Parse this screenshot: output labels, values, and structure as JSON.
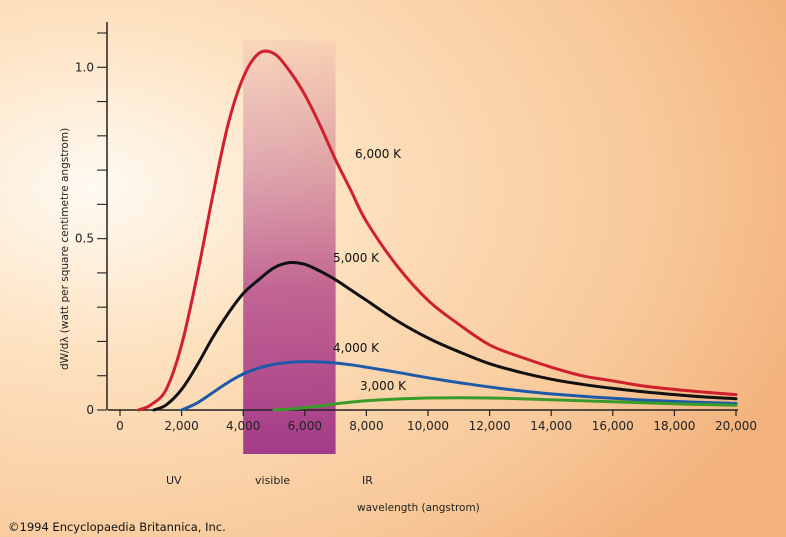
{
  "chart_data": {
    "type": "line",
    "xlabel": "wavelength (angstrom)",
    "ylabel": "dW/dλ (watt per square centimetre angstrom)",
    "xlim": [
      0,
      20000
    ],
    "ylim": [
      0,
      1.1
    ],
    "x_ticks": [
      0,
      2000,
      4000,
      6000,
      8000,
      10000,
      12000,
      14000,
      16000,
      18000,
      20000
    ],
    "x_tick_labels": [
      "0",
      "2,000",
      "4,000",
      "6,000",
      "8,000",
      "10,000",
      "12,000",
      "14,000",
      "16,000",
      "18,000",
      "20,000"
    ],
    "y_ticks": [
      0,
      0.5,
      1.0
    ],
    "y_tick_labels": [
      "0",
      "0.5",
      "1.0"
    ],
    "grid": false,
    "series": [
      {
        "name": "6,000 K",
        "color": "#d0202e",
        "x": [
          600,
          1000,
          1500,
          2000,
          2500,
          3000,
          3500,
          4000,
          4500,
          5000,
          5500,
          6000,
          6500,
          7000,
          7500,
          8000,
          9000,
          10000,
          11000,
          12000,
          13000,
          14000,
          15000,
          16000,
          17000,
          18000,
          19000,
          20000
        ],
        "values": [
          0.0,
          0.015,
          0.06,
          0.19,
          0.39,
          0.62,
          0.83,
          0.97,
          1.04,
          1.04,
          0.99,
          0.92,
          0.83,
          0.73,
          0.64,
          0.55,
          0.42,
          0.32,
          0.25,
          0.19,
          0.155,
          0.125,
          0.1,
          0.085,
          0.07,
          0.06,
          0.052,
          0.045
        ]
      },
      {
        "name": "5,000 K",
        "color": "#111111",
        "x": [
          1100,
          1500,
          2000,
          2500,
          3000,
          3500,
          4000,
          4500,
          5000,
          5500,
          6000,
          6500,
          7000,
          7500,
          8000,
          9000,
          10000,
          11000,
          12000,
          13000,
          14000,
          15000,
          16000,
          17000,
          18000,
          19000,
          20000
        ],
        "values": [
          0.0,
          0.015,
          0.06,
          0.13,
          0.21,
          0.28,
          0.34,
          0.38,
          0.415,
          0.43,
          0.425,
          0.405,
          0.38,
          0.35,
          0.32,
          0.26,
          0.21,
          0.17,
          0.135,
          0.11,
          0.09,
          0.075,
          0.063,
          0.053,
          0.045,
          0.038,
          0.033
        ]
      },
      {
        "name": "4,000 K",
        "color": "#1e5aa8",
        "x": [
          2000,
          2500,
          3000,
          3500,
          4000,
          4500,
          5000,
          5500,
          6000,
          6500,
          7000,
          7500,
          8000,
          9000,
          10000,
          11000,
          12000,
          13000,
          14000,
          15000,
          16000,
          17000,
          18000,
          19000,
          20000
        ],
        "values": [
          0.0,
          0.02,
          0.05,
          0.08,
          0.105,
          0.122,
          0.133,
          0.139,
          0.141,
          0.14,
          0.137,
          0.132,
          0.125,
          0.11,
          0.094,
          0.08,
          0.067,
          0.056,
          0.047,
          0.04,
          0.034,
          0.029,
          0.025,
          0.022,
          0.019
        ]
      },
      {
        "name": "3,000 K",
        "color": "#3a9a2a",
        "x": [
          5000,
          5500,
          6000,
          6500,
          7000,
          7500,
          8000,
          9000,
          10000,
          11000,
          12000,
          13000,
          14000,
          15000,
          16000,
          17000,
          18000,
          19000,
          20000
        ],
        "values": [
          0.0,
          0.003,
          0.007,
          0.012,
          0.018,
          0.023,
          0.027,
          0.032,
          0.035,
          0.036,
          0.035,
          0.033,
          0.03,
          0.027,
          0.024,
          0.021,
          0.018,
          0.016,
          0.014
        ]
      }
    ],
    "regions": [
      {
        "label": "UV"
      },
      {
        "label": "visible",
        "x_range": [
          4000,
          7000
        ]
      },
      {
        "label": "IR"
      }
    ]
  },
  "copyright": "©1994 Encyclopaedia Britannica, Inc."
}
